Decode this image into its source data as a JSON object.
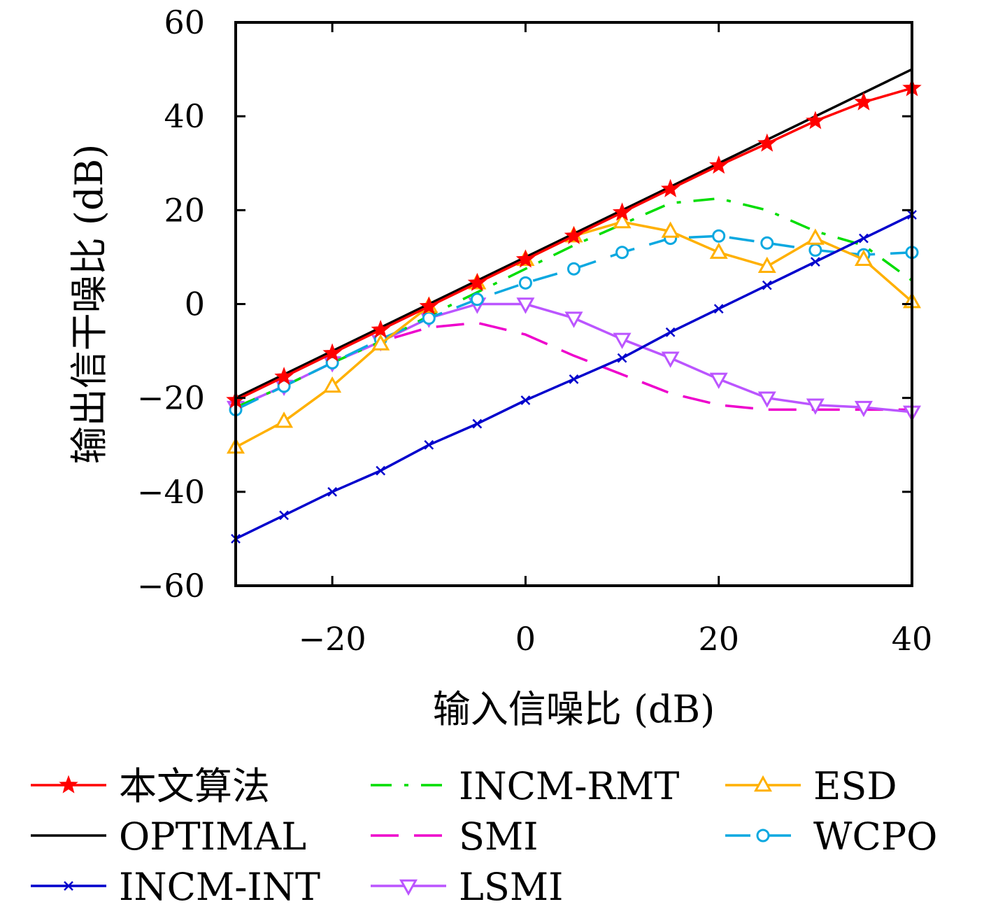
{
  "chart_data": {
    "type": "line",
    "xlabel": "输入信噪比 (dB)",
    "ylabel": "输出信干噪比 (dB)",
    "xlim": [
      -30,
      40
    ],
    "ylim": [
      -60,
      60
    ],
    "xticks": [
      -20,
      0,
      20,
      40
    ],
    "xtick_labels": [
      "−20",
      "0",
      "20",
      "40"
    ],
    "yticks": [
      -60,
      -40,
      -20,
      0,
      20,
      40,
      60
    ],
    "ytick_labels": [
      "−60",
      "−40",
      "−20",
      "0",
      "20",
      "40",
      "60"
    ],
    "grid": false,
    "legend_position": "bottom",
    "series": [
      {
        "name": "本文算法",
        "color": "#ff0000",
        "dash": "",
        "marker": "star",
        "x": [
          -30,
          -25,
          -20,
          -15,
          -10,
          -5,
          0,
          5,
          10,
          15,
          20,
          25,
          30,
          35,
          40
        ],
        "y": [
          -20.5,
          -15.5,
          -10.5,
          -5.5,
          -0.5,
          4.5,
          9.5,
          14.5,
          19.5,
          24.5,
          29.5,
          34.2,
          39,
          43,
          46
        ]
      },
      {
        "name": "OPTIMAL",
        "color": "#000000",
        "dash": "",
        "marker": "none",
        "x": [
          -30,
          40
        ],
        "y": [
          -20,
          50
        ]
      },
      {
        "name": "INCM-INT",
        "color": "#0000cc",
        "dash": "",
        "marker": "x",
        "x": [
          -30,
          -25,
          -20,
          -15,
          -10,
          -5,
          0,
          5,
          10,
          15,
          20,
          25,
          30,
          35,
          40
        ],
        "y": [
          -50,
          -45,
          -40,
          -35.5,
          -30,
          -25.5,
          -20.5,
          -16,
          -11.5,
          -6,
          -1,
          4,
          9,
          14,
          19
        ]
      },
      {
        "name": "INCM-RMT",
        "color": "#00dd00",
        "dash": "30,18,6,18",
        "marker": "none",
        "x": [
          -30,
          -25,
          -20,
          -15,
          -10,
          -5,
          0,
          5,
          10,
          15,
          20,
          25,
          30,
          35,
          40
        ],
        "y": [
          -22,
          -17.5,
          -12.5,
          -8,
          -2.5,
          2.5,
          7.5,
          12.5,
          17,
          21.5,
          22.5,
          20,
          15.5,
          12.5,
          5
        ]
      },
      {
        "name": "SMI",
        "color": "#ee00cc",
        "dash": "40,22",
        "marker": "none",
        "x": [
          -30,
          -25,
          -20,
          -15,
          -10,
          -5,
          0,
          5,
          10,
          15,
          20,
          25,
          30,
          35,
          40
        ],
        "y": [
          -22,
          -17.5,
          -12.5,
          -8,
          -5,
          -4,
          -6.5,
          -11,
          -15,
          -19,
          -21.5,
          -22.5,
          -22.5,
          -22.5,
          -22.5
        ]
      },
      {
        "name": "LSMI",
        "color": "#bb55ff",
        "dash": "",
        "marker": "tri-down",
        "x": [
          -30,
          -25,
          -20,
          -15,
          -10,
          -5,
          0,
          5,
          10,
          15,
          20,
          25,
          30,
          35,
          40
        ],
        "y": [
          -22,
          -17.5,
          -12.5,
          -8,
          -3,
          0,
          0,
          -3,
          -7.5,
          -11.5,
          -16,
          -20,
          -21.5,
          -22,
          -23
        ]
      },
      {
        "name": "ESD",
        "color": "#ffb000",
        "dash": "",
        "marker": "tri-up",
        "x": [
          -30,
          -25,
          -20,
          -15,
          -10,
          -5,
          0,
          5,
          10,
          15,
          20,
          25,
          30,
          35,
          40
        ],
        "y": [
          -30.5,
          -25,
          -17.5,
          -8.5,
          -0.5,
          4.5,
          9.5,
          14.5,
          17.5,
          15.5,
          11,
          8,
          14,
          9.5,
          0.5
        ]
      },
      {
        "name": "WCPO",
        "color": "#0aa8e0",
        "dash": "36,22",
        "marker": "circle",
        "x": [
          -30,
          -25,
          -20,
          -15,
          -10,
          -5,
          0,
          5,
          10,
          15,
          20,
          25,
          30,
          35,
          40
        ],
        "y": [
          -22.5,
          -17.5,
          -12.5,
          -7.5,
          -3,
          1,
          4.5,
          7.5,
          11,
          14,
          14.5,
          13,
          11.5,
          10.5,
          11
        ]
      }
    ]
  }
}
